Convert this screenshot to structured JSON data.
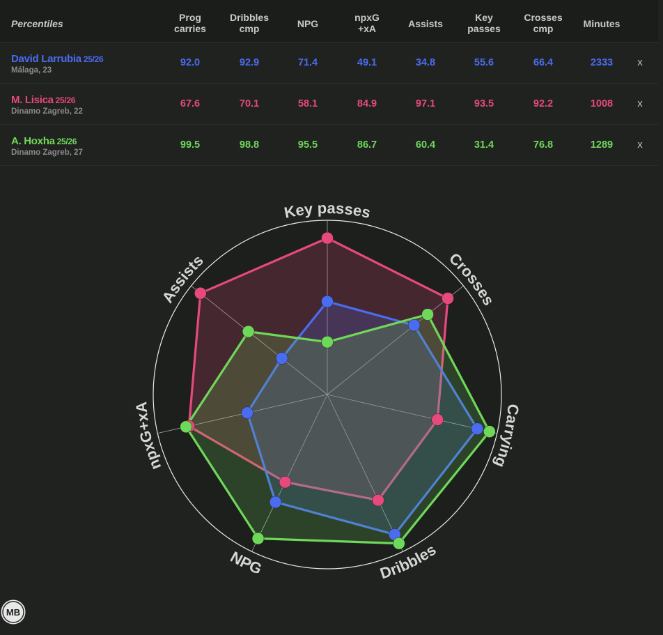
{
  "table": {
    "title": "Percentiles",
    "columns": [
      {
        "label": "Prog\ncarries"
      },
      {
        "label": "Dribbles\ncmp"
      },
      {
        "label": "NPG"
      },
      {
        "label": "npxG\n+xA"
      },
      {
        "label": "Assists"
      },
      {
        "label": "Key\npasses"
      },
      {
        "label": "Crosses\ncmp"
      },
      {
        "label": "Minutes"
      }
    ],
    "remove_label": "x"
  },
  "players": [
    {
      "name": "David Larrubia",
      "season": "25/26",
      "club_age": "Málaga, 23",
      "color": "#4a6cf0",
      "values": [
        "92.0",
        "92.9",
        "71.4",
        "49.1",
        "34.8",
        "55.6",
        "66.4",
        "2333"
      ]
    },
    {
      "name": "M. Lisica",
      "season": "25/26",
      "club_age": "Dinamo Zagreb, 22",
      "color": "#e64a7d",
      "values": [
        "67.6",
        "70.1",
        "58.1",
        "84.9",
        "97.1",
        "93.5",
        "92.2",
        "1008"
      ]
    },
    {
      "name": "A. Hoxha",
      "season": "25/26",
      "club_age": "Dinamo Zagreb, 27",
      "color": "#6fd85a",
      "values": [
        "99.5",
        "98.8",
        "95.5",
        "86.7",
        "60.4",
        "31.4",
        "76.8",
        "1289"
      ]
    }
  ],
  "chart_data": {
    "type": "radar",
    "axes": [
      "Key passes",
      "Crosses",
      "Carrying",
      "Dribbles",
      "NPG",
      "npxG+xA",
      "Assists"
    ],
    "range": [
      0,
      100
    ],
    "series": [
      {
        "name": "M. Lisica",
        "color": "#e64a7d",
        "values": [
          93.5,
          92.2,
          67.6,
          70.1,
          58.1,
          84.9,
          97.1
        ]
      },
      {
        "name": "David Larrubia",
        "color": "#4a6cf0",
        "values": [
          55.6,
          66.4,
          92.0,
          92.9,
          71.4,
          49.1,
          34.8
        ]
      },
      {
        "name": "A. Hoxha",
        "color": "#6fd85a",
        "values": [
          31.4,
          76.8,
          99.5,
          98.8,
          95.5,
          86.7,
          60.4
        ]
      }
    ]
  },
  "logo_text": "MB"
}
